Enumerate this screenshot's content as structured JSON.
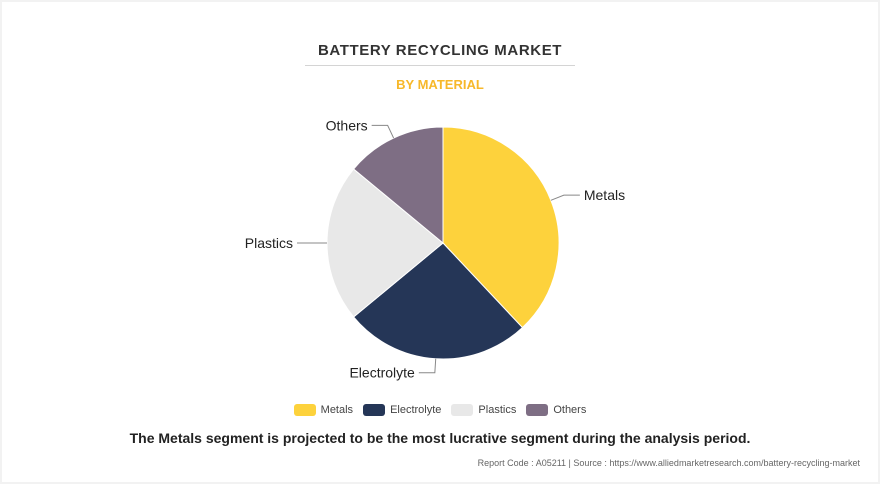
{
  "header": {
    "title": "BATTERY RECYCLING MARKET",
    "subtitle": "BY MATERIAL"
  },
  "chart_data": {
    "type": "pie",
    "title": "BATTERY RECYCLING MARKET",
    "subtitle": "BY MATERIAL",
    "series": [
      {
        "name": "Metals",
        "value": 38,
        "color": "#fdd23c"
      },
      {
        "name": "Electrolyte",
        "value": 26,
        "color": "#253657"
      },
      {
        "name": "Plastics",
        "value": 22,
        "color": "#e8e8e8"
      },
      {
        "name": "Others",
        "value": 14,
        "color": "#7e6e84"
      }
    ],
    "legend_position": "bottom"
  },
  "legend": {
    "items": [
      {
        "label": "Metals",
        "color": "#fdd23c"
      },
      {
        "label": "Electrolyte",
        "color": "#253657"
      },
      {
        "label": "Plastics",
        "color": "#e8e8e8"
      },
      {
        "label": "Others",
        "color": "#7e6e84"
      }
    ]
  },
  "caption": "The Metals segment is projected to be the most lucrative segment during the analysis period.",
  "footer": "Report Code : A05211  |  Source : https://www.alliedmarketresearch.com/battery-recycling-market"
}
